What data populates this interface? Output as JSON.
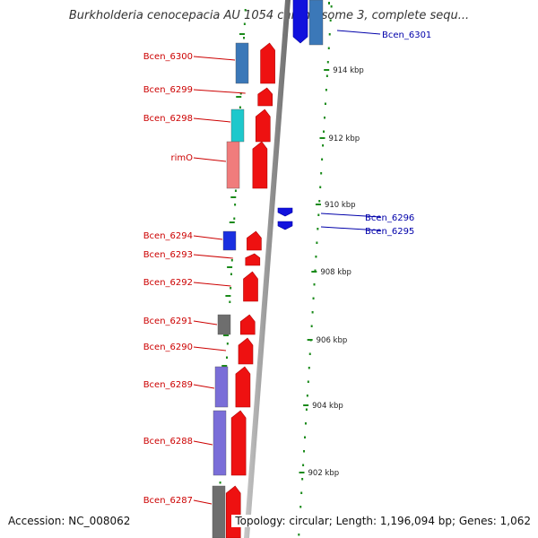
{
  "title": "Burkholderia cenocepacia AU 1054 chromosome 3, complete sequ...",
  "footer": {
    "accession": "Accession: NC_008062",
    "summary": "Topology: circular; Length: 1,196,094 bp; Genes: 1,062"
  },
  "colors": {
    "forward_gene": "#ee1111",
    "reverse_gene": "#1111dd",
    "forward_label": "#cc0000",
    "reverse_label": "#0000aa",
    "backbone": "#888888",
    "tick": "#1a8a1a",
    "tick_label": "#222222",
    "cog_blue": "#3b78b8",
    "cog_cyan": "#1ec8cc",
    "cog_pink": "#f07c7c",
    "cog_blue_dark": "#1a2fe0",
    "cog_gray": "#6e6e6e",
    "cog_purple": "#7a6ed8"
  },
  "scale": {
    "unit": "kbp",
    "ticks": [
      {
        "label": "914 kbp"
      },
      {
        "label": "912 kbp"
      },
      {
        "label": "910 kbp"
      },
      {
        "label": "908 kbp"
      },
      {
        "label": "906 kbp"
      },
      {
        "label": "904 kbp"
      },
      {
        "label": "902 kbp"
      }
    ]
  },
  "genes": {
    "forward": [
      {
        "label": "Bcen_6300",
        "cog": "cog_blue"
      },
      {
        "label": "Bcen_6299",
        "cog": ""
      },
      {
        "label": "Bcen_6298",
        "cog": "cog_cyan"
      },
      {
        "label": "rimO",
        "cog": "cog_pink"
      },
      {
        "label": "Bcen_6294",
        "cog": "cog_blue_dark"
      },
      {
        "label": "Bcen_6293",
        "cog": ""
      },
      {
        "label": "Bcen_6292",
        "cog": ""
      },
      {
        "label": "Bcen_6291",
        "cog": "cog_gray"
      },
      {
        "label": "Bcen_6290",
        "cog": ""
      },
      {
        "label": "Bcen_6289",
        "cog": "cog_purple"
      },
      {
        "label": "Bcen_6288",
        "cog": "cog_purple"
      },
      {
        "label": "Bcen_6287",
        "cog": "cog_gray"
      }
    ],
    "reverse": [
      {
        "label": "Bcen_6301",
        "cog": "cog_blue"
      },
      {
        "label": "Bcen_6296",
        "cog": ""
      },
      {
        "label": "Bcen_6295",
        "cog": ""
      }
    ]
  }
}
